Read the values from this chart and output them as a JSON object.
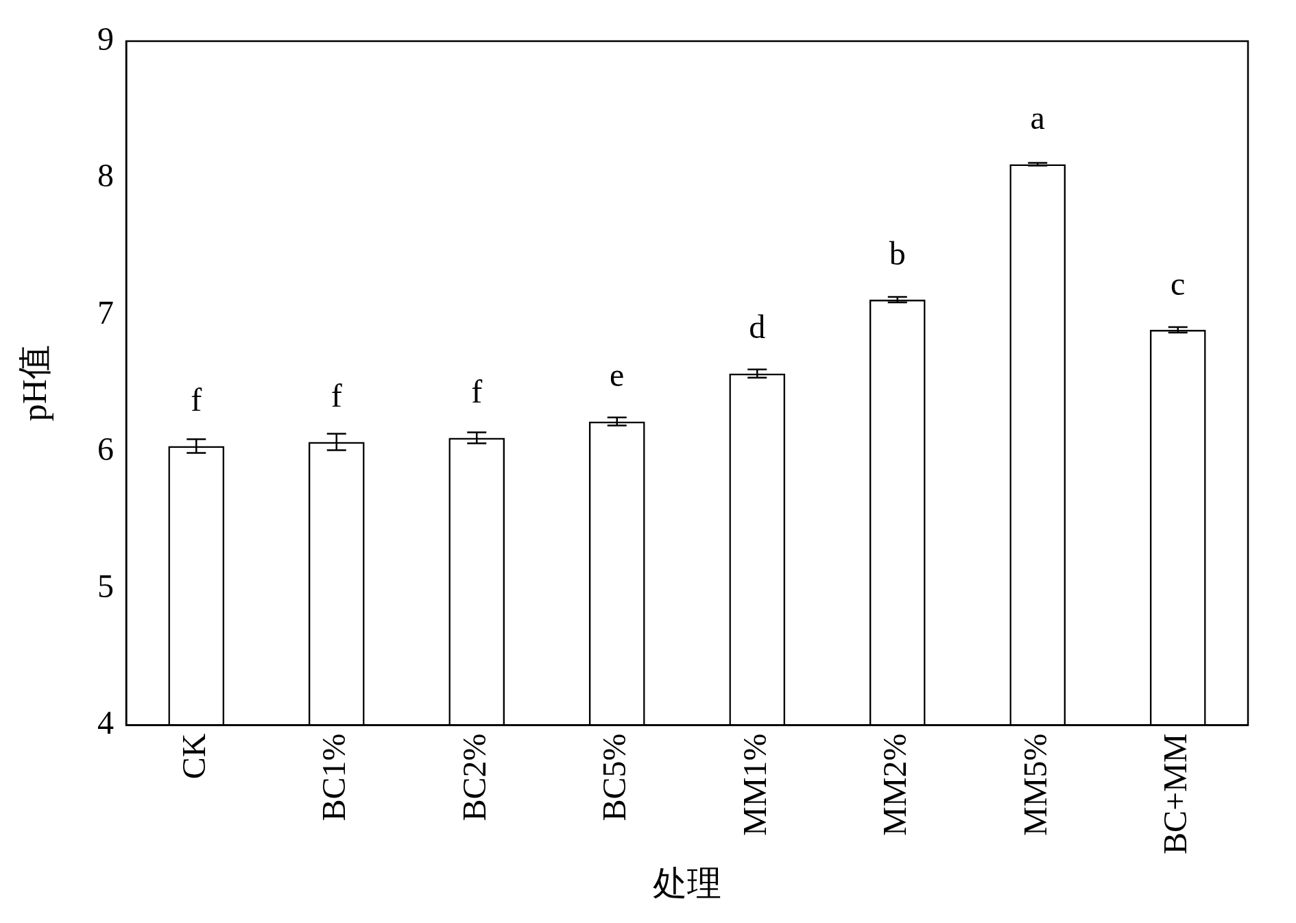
{
  "chart_data": {
    "type": "bar",
    "xlabel": "处理",
    "ylabel": "pH值",
    "categories": [
      "CK",
      "BC1%",
      "BC2%",
      "BC5%",
      "MM1%",
      "MM2%",
      "MM5%",
      "BC+MM"
    ],
    "values": [
      6.04,
      6.07,
      6.1,
      6.22,
      6.57,
      7.11,
      8.1,
      6.89
    ],
    "errors": [
      0.05,
      0.06,
      0.04,
      0.03,
      0.03,
      0.02,
      0.01,
      0.02
    ],
    "color": "#000000",
    "ylim": [
      4,
      9
    ],
    "yticks": [
      4,
      5,
      6,
      7,
      8,
      9
    ],
    "grid": false,
    "legend": false,
    "annotations": [
      {
        "text": "f",
        "x": "CK",
        "y": 6.04
      },
      {
        "text": "f",
        "x": "BC1%",
        "y": 6.07
      },
      {
        "text": "f",
        "x": "BC2%",
        "y": 6.1
      },
      {
        "text": "e",
        "x": "BC5%",
        "y": 6.22
      },
      {
        "text": "d",
        "x": "MM1%",
        "y": 6.57
      },
      {
        "text": "b",
        "x": "MM2%",
        "y": 7.11
      },
      {
        "text": "a",
        "x": "MM5%",
        "y": 8.1
      },
      {
        "text": "c",
        "x": "BC+MM",
        "y": 6.89
      }
    ]
  }
}
